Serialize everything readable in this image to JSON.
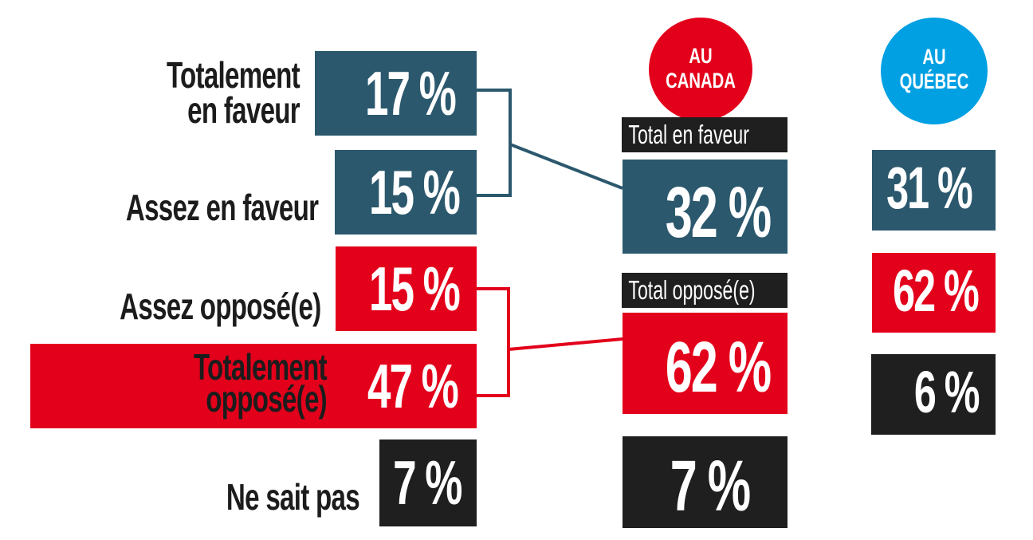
{
  "chart_data": {
    "type": "table",
    "columns": [
      {
        "name": "AU CANADA",
        "color": "#e3001b"
      },
      {
        "name": "AU QUÉBEC",
        "color": "#00a0e3"
      }
    ],
    "categories": [
      "Totalement en faveur",
      "Assez en faveur",
      "Assez opposé(e)",
      "Totalement opposé(e)",
      "Ne sait pas"
    ],
    "breakdown_canada": [
      {
        "label_lines": [
          "Totalement",
          "en faveur"
        ],
        "value": 17,
        "display": "17 %",
        "color": "#2b586d"
      },
      {
        "label_lines": [
          "Assez en faveur"
        ],
        "value": 15,
        "display": "15 %",
        "color": "#2b586d"
      },
      {
        "label_lines": [
          "Assez opposé(e)"
        ],
        "value": 15,
        "display": "15 %",
        "color": "#e3001b"
      },
      {
        "label_lines": [
          "Totalement",
          "opposé(e)"
        ],
        "value": 47,
        "display": "47 %",
        "color": "#e3001b"
      },
      {
        "label_lines": [
          "Ne sait pas"
        ],
        "value": 7,
        "display": "7 %",
        "color": "#1f1f1f"
      }
    ],
    "totals": [
      {
        "label": "Total en faveur",
        "canada": 32,
        "canada_display": "32 %",
        "quebec": 31,
        "quebec_display": "31 %",
        "color": "#2b586d"
      },
      {
        "label": "Total opposé(e)",
        "canada": 62,
        "canada_display": "62 %",
        "quebec": 62,
        "quebec_display": "62 %",
        "color": "#e3001b"
      },
      {
        "label": "",
        "canada": 7,
        "canada_display": "7 %",
        "quebec": 6,
        "quebec_display": "6 %",
        "color": "#1f1f1f"
      }
    ]
  },
  "header": {
    "canada_lines": [
      "AU",
      "CANADA"
    ],
    "quebec_lines": [
      "AU",
      "QUÉBEC"
    ]
  }
}
